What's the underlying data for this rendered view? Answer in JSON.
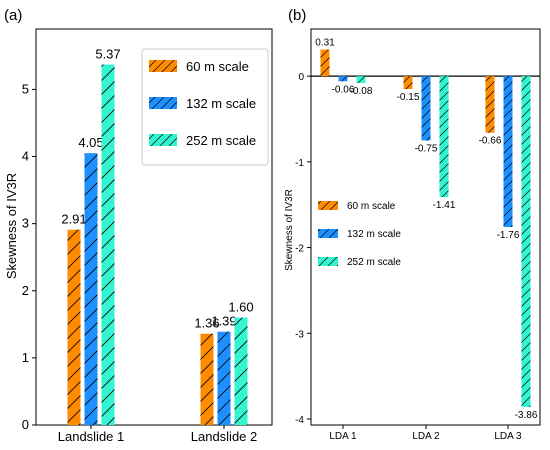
{
  "colors": {
    "s60": "#FF8C00",
    "s132": "#1E8FFF",
    "s252": "#33F5D0"
  },
  "chart_data": [
    {
      "panel_label": "(a)",
      "type": "bar",
      "ylabel": "Skewness of IV3R",
      "categories": [
        "Landslide 1",
        "Landslide 2"
      ],
      "ylim": [
        0,
        5.9
      ],
      "yticks": [
        0,
        1,
        2,
        3,
        4,
        5
      ],
      "legend_position": "top-right",
      "series": [
        {
          "name": "60 m scale",
          "values": [
            2.91,
            1.36
          ],
          "labels": [
            "2.91",
            "1.36"
          ]
        },
        {
          "name": "132 m scale",
          "values": [
            4.05,
            1.39
          ],
          "labels": [
            "4.05",
            "1.39"
          ]
        },
        {
          "name": "252 m scale",
          "values": [
            5.37,
            1.6
          ],
          "labels": [
            "5.37",
            "1.60"
          ]
        }
      ]
    },
    {
      "panel_label": "(b)",
      "type": "bar",
      "ylabel": "Skewness of IV3R",
      "categories": [
        "LDA 1",
        "LDA 2",
        "LDA 3"
      ],
      "ylim": [
        -4.07,
        0.55
      ],
      "yticks": [
        0,
        -1,
        -2,
        -3,
        -4
      ],
      "legend_position": "center-left",
      "series": [
        {
          "name": "60 m scale",
          "values": [
            0.31,
            -0.15,
            -0.66
          ],
          "labels": [
            "0.31",
            "-0.15",
            "-0.66"
          ]
        },
        {
          "name": "132 m scale",
          "values": [
            -0.06,
            -0.75,
            -1.76
          ],
          "labels": [
            "-0.06",
            "-0.75",
            "-1.76"
          ]
        },
        {
          "name": "252 m scale",
          "values": [
            -0.08,
            -1.41,
            -3.86
          ],
          "labels": [
            "-0.08",
            "-1.41",
            "-3.86"
          ]
        }
      ]
    }
  ]
}
